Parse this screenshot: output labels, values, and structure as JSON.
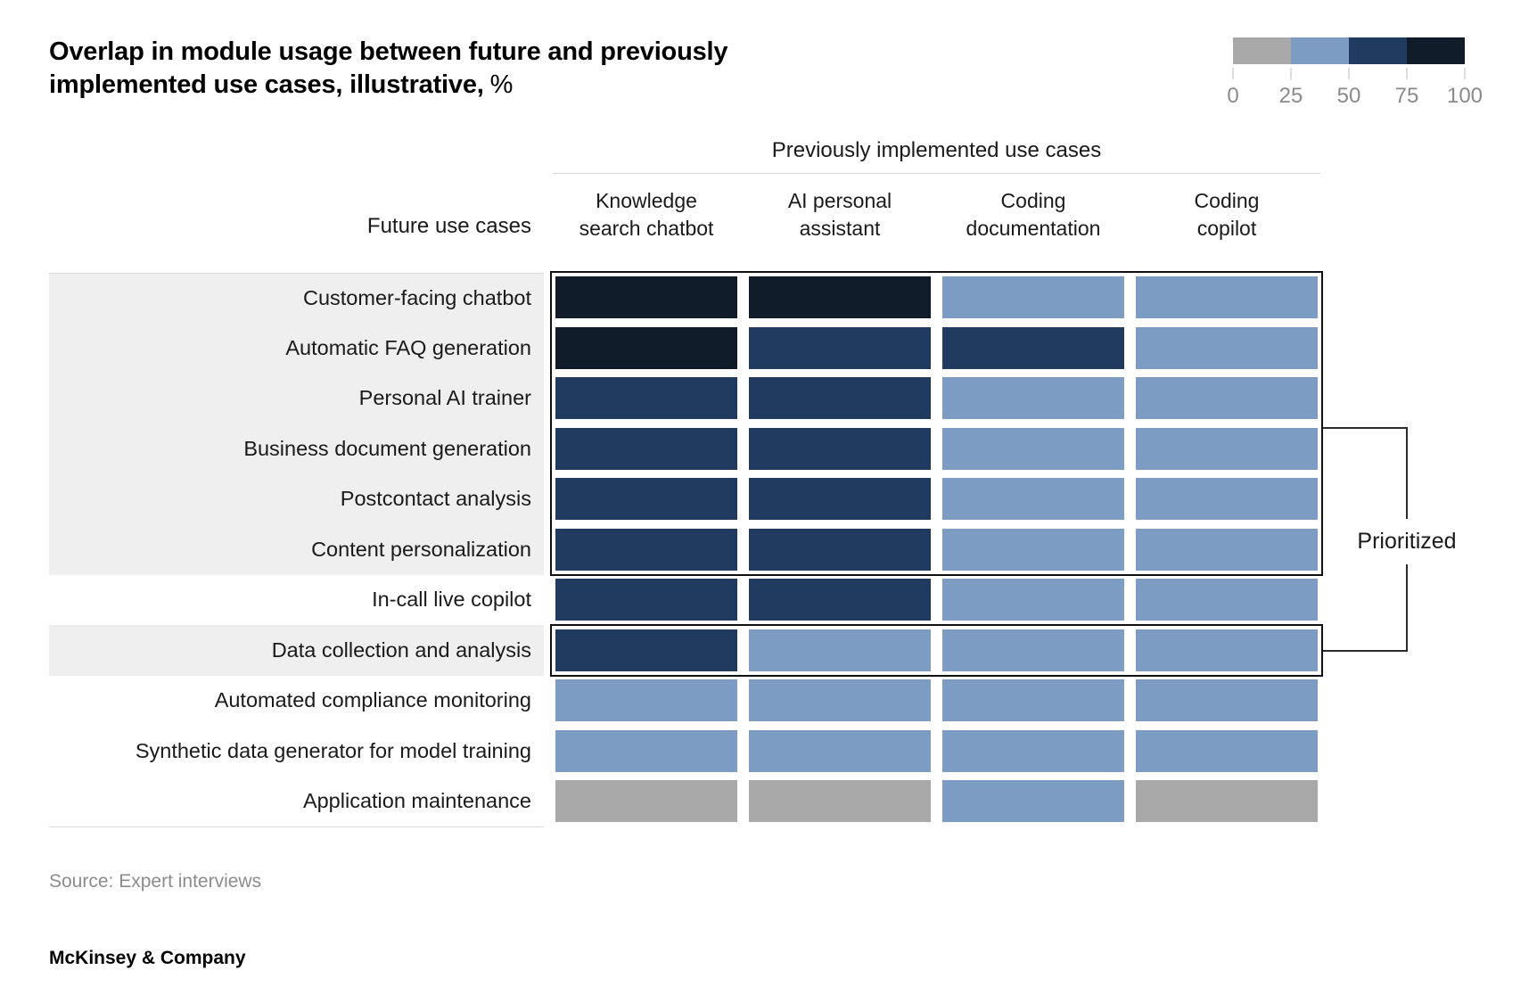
{
  "title": {
    "line1": "Overlap in module usage between future and previously",
    "line2_bold": "implemented use cases, illustrative,",
    "line2_suffix": "%"
  },
  "legend": {
    "tick_labels": [
      "0",
      "25",
      "50",
      "75",
      "100"
    ]
  },
  "chart_data": {
    "type": "heatmap",
    "title": "Overlap in module usage between future and previously implemented use cases, illustrative, %",
    "column_group_label": "Previously implemented use cases",
    "row_group_label": "Future use cases",
    "columns": [
      "Knowledge search chatbot",
      "AI personal assistant",
      "Coding documentation",
      "Coding copilot"
    ],
    "rows": [
      "Customer-facing chatbot",
      "Automatic FAQ generation",
      "Personal AI trainer",
      "Business document generation",
      "Postcontact analysis",
      "Content personalization",
      "In-call live copilot",
      "Data collection and analysis",
      "Automated compliance monitoring",
      "Synthetic data generator for model training",
      "Application maintenance"
    ],
    "value_bins_pct": [
      "0-25",
      "25-50",
      "50-75",
      "75-100"
    ],
    "bin_colors": [
      "#a9a9a9",
      "#7d9cc3",
      "#213a5f",
      "#101c2a"
    ],
    "legend_axis_ticks": [
      0,
      25,
      50,
      75,
      100
    ],
    "cell_bin_index": [
      [
        3,
        3,
        1,
        1
      ],
      [
        3,
        2,
        2,
        1
      ],
      [
        2,
        2,
        1,
        1
      ],
      [
        2,
        2,
        1,
        1
      ],
      [
        2,
        2,
        1,
        1
      ],
      [
        2,
        2,
        1,
        1
      ],
      [
        2,
        2,
        1,
        1
      ],
      [
        2,
        1,
        1,
        1
      ],
      [
        1,
        1,
        1,
        1
      ],
      [
        1,
        1,
        1,
        1
      ],
      [
        0,
        0,
        1,
        0
      ]
    ],
    "prioritized_row_groups": [
      [
        0,
        5
      ],
      [
        7,
        7
      ]
    ],
    "prioritized_label": "Prioritized"
  },
  "display": {
    "column_label_lines": [
      [
        "Knowledge",
        "search chatbot"
      ],
      [
        "AI personal",
        "assistant"
      ],
      [
        "Coding",
        "documentation"
      ],
      [
        "Coding",
        "copilot"
      ]
    ],
    "shaded_label_rows": [
      0,
      1,
      2,
      3,
      4,
      5,
      7
    ]
  },
  "annotations": {
    "prioritized_label": "Prioritized"
  },
  "footer": {
    "source": "Source: Expert interviews",
    "brand": "McKinsey & Company"
  }
}
